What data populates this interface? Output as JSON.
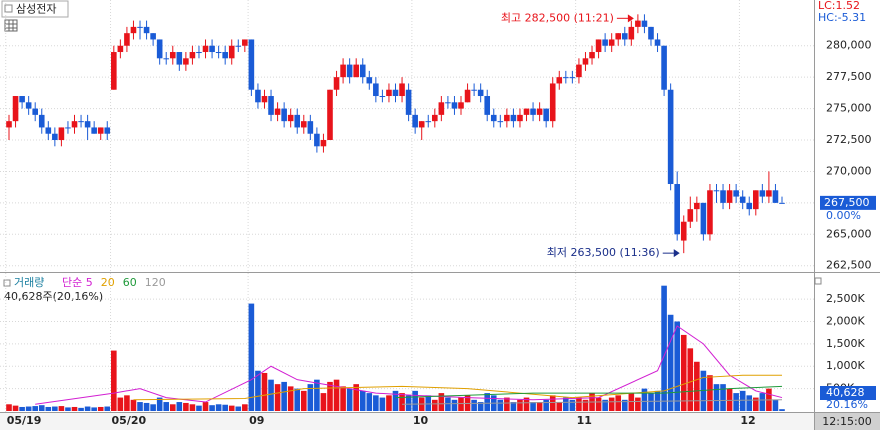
{
  "header": {
    "title": "삼성전자",
    "lc": "LC:1.52",
    "hc": "HC:-5.31",
    "time": "12:15:00"
  },
  "chart_data": [
    {
      "type": "candlestick",
      "up_color": "#e8141b",
      "down_color": "#1a5bd6",
      "open": [
        273500,
        274000,
        276000,
        275500,
        275000,
        274500,
        273500,
        273000,
        272500,
        273500,
        273500,
        274000,
        274000,
        273500,
        273000,
        273500,
        276500,
        279500,
        280000,
        281000,
        281500,
        281500,
        281000,
        280500,
        279000,
        279000,
        279500,
        278500,
        279000,
        279500,
        279500,
        280000,
        279500,
        279500,
        279000,
        280000,
        280000,
        280500,
        276500,
        275500,
        276000,
        274500,
        275000,
        274000,
        274500,
        273500,
        274000,
        273000,
        272000,
        272500,
        276500,
        277500,
        278500,
        277500,
        278500,
        277500,
        277000,
        276000,
        276000,
        276500,
        276000,
        276500,
        274500,
        273500,
        274000,
        274000,
        274500,
        275500,
        275500,
        275000,
        275500,
        276500,
        276500,
        276000,
        274500,
        274000,
        274000,
        274500,
        274000,
        274500,
        275000,
        274500,
        275000,
        274000,
        277000,
        277500,
        277500,
        277500,
        278500,
        279000,
        279500,
        280500,
        280000,
        280500,
        281000,
        280500,
        281500,
        282000,
        281500,
        280500,
        280000,
        276500,
        269000,
        264500,
        266000,
        267000,
        267500,
        265000,
        268500,
        268500,
        267500,
        268500,
        268000,
        267500,
        267000,
        268500,
        268000,
        268500,
        267500
      ],
      "high": [
        274500,
        276000,
        276000,
        276000,
        275500,
        275000,
        274000,
        273500,
        273500,
        274000,
        274500,
        274500,
        274500,
        274000,
        273500,
        274000,
        280000,
        280500,
        281500,
        282000,
        282000,
        282000,
        281000,
        280500,
        279500,
        280000,
        279500,
        279500,
        280000,
        280000,
        280500,
        280500,
        280000,
        280000,
        280500,
        280500,
        280500,
        280500,
        277000,
        276500,
        276500,
        275500,
        275500,
        275000,
        275000,
        274500,
        274500,
        273500,
        273000,
        276500,
        278000,
        279000,
        279000,
        279000,
        279000,
        278000,
        277500,
        276500,
        277000,
        277000,
        277500,
        277000,
        275000,
        274000,
        274500,
        275000,
        276000,
        276000,
        276000,
        276000,
        277000,
        277000,
        277000,
        276500,
        275000,
        274500,
        275000,
        275000,
        275000,
        275000,
        275500,
        275500,
        275000,
        277500,
        278000,
        278000,
        278000,
        279000,
        279500,
        280000,
        280500,
        281000,
        281000,
        281000,
        281500,
        282000,
        282500,
        282500,
        281500,
        281000,
        280000,
        277000,
        270000,
        266500,
        268000,
        268000,
        267500,
        269000,
        269000,
        269000,
        269000,
        269000,
        268500,
        268000,
        268500,
        269000,
        270000,
        269000,
        268000
      ],
      "low": [
        272500,
        273500,
        275000,
        274500,
        274000,
        273000,
        272500,
        272000,
        272000,
        273000,
        273000,
        273500,
        272500,
        273000,
        272500,
        272500,
        276500,
        279000,
        279500,
        280500,
        280500,
        280500,
        280000,
        278500,
        278500,
        278500,
        278000,
        278000,
        278500,
        279000,
        279000,
        279000,
        279000,
        278500,
        278500,
        279500,
        279500,
        276000,
        275000,
        275000,
        274000,
        274000,
        273500,
        273500,
        273000,
        273000,
        272500,
        271500,
        271500,
        272500,
        276000,
        277000,
        277000,
        277500,
        277000,
        276500,
        275500,
        275500,
        275500,
        275500,
        275500,
        274000,
        273000,
        272500,
        273500,
        273500,
        274000,
        275000,
        274500,
        274500,
        275500,
        276000,
        275500,
        274000,
        273500,
        273500,
        273500,
        273500,
        273500,
        274000,
        274000,
        274000,
        273500,
        273500,
        276500,
        277000,
        277000,
        277000,
        278000,
        278500,
        279000,
        279500,
        279500,
        280000,
        280000,
        280000,
        281000,
        281000,
        280000,
        279500,
        276000,
        268500,
        264500,
        263500,
        265500,
        266000,
        264500,
        264500,
        267500,
        267000,
        267000,
        267500,
        267000,
        266500,
        266500,
        267500,
        267500,
        267500,
        267500
      ],
      "close": [
        274000,
        276000,
        275500,
        275000,
        274500,
        273500,
        273000,
        272500,
        273500,
        273500,
        274000,
        274000,
        273500,
        273000,
        273500,
        273000,
        279500,
        280000,
        281000,
        281500,
        281500,
        281000,
        280500,
        279000,
        279000,
        279500,
        278500,
        279000,
        279500,
        279500,
        280000,
        279500,
        279500,
        279000,
        280000,
        280000,
        280500,
        276500,
        275500,
        276000,
        274500,
        275000,
        274000,
        274500,
        273500,
        274000,
        273000,
        272000,
        272500,
        276500,
        277500,
        278500,
        277500,
        278500,
        277500,
        277000,
        276000,
        276000,
        276500,
        276000,
        277000,
        274500,
        273500,
        274000,
        274000,
        274500,
        275500,
        275500,
        275000,
        275500,
        276500,
        276500,
        276000,
        274500,
        274000,
        274000,
        274500,
        274000,
        274500,
        275000,
        274500,
        275000,
        274000,
        277000,
        277500,
        277500,
        277500,
        278500,
        279000,
        279500,
        280500,
        280000,
        280500,
        281000,
        280500,
        281500,
        282000,
        281500,
        280500,
        280000,
        276500,
        269000,
        265000,
        266000,
        267000,
        267500,
        265000,
        268500,
        268500,
        267500,
        268500,
        268000,
        267500,
        267000,
        268500,
        268000,
        268500,
        267500,
        267500
      ],
      "ylim": [
        262000,
        283400
      ],
      "yticks": [
        {
          "value": 262500,
          "label": "262,500"
        },
        {
          "value": 265000,
          "label": "265,000"
        },
        {
          "value": 267500,
          "label": "267,500"
        },
        {
          "value": 270000,
          "label": "270,000"
        },
        {
          "value": 272500,
          "label": "272,500"
        },
        {
          "value": 275000,
          "label": "275,000"
        },
        {
          "value": 277500,
          "label": "277,500"
        },
        {
          "value": 280000,
          "label": "280,000"
        }
      ],
      "xticks": [
        {
          "value": 0,
          "label": "05/19"
        },
        {
          "value": 16,
          "label": "05/20"
        },
        {
          "value": 37,
          "label": "09"
        },
        {
          "value": 62,
          "label": "10"
        },
        {
          "value": 87,
          "label": "11"
        },
        {
          "value": 112,
          "label": "12"
        }
      ],
      "annotations": [
        {
          "text": "최고 282,500 (11:21)",
          "index": 96,
          "value": 282500,
          "color": "#e8141b"
        },
        {
          "text": "최저 263,500 (11:36)",
          "index": 103,
          "value": 263500,
          "color": "#1a2f8a"
        }
      ],
      "current": {
        "value": 267500,
        "label": "267,500",
        "change": "0.00%"
      }
    },
    {
      "type": "volume",
      "legend_title": "거래량",
      "summary": "40,628주(20,16%)",
      "values": [
        150000,
        120000,
        90000,
        100000,
        110000,
        130000,
        90000,
        100000,
        110000,
        80000,
        90000,
        70000,
        100000,
        80000,
        90000,
        100000,
        1350000,
        300000,
        350000,
        250000,
        200000,
        180000,
        150000,
        300000,
        200000,
        150000,
        200000,
        180000,
        150000,
        120000,
        200000,
        130000,
        150000,
        140000,
        120000,
        100000,
        150000,
        2400000,
        900000,
        850000,
        700000,
        600000,
        650000,
        550000,
        500000,
        450000,
        600000,
        700000,
        400000,
        650000,
        700000,
        550000,
        500000,
        600000,
        450000,
        400000,
        350000,
        300000,
        350000,
        450000,
        400000,
        350000,
        450000,
        300000,
        350000,
        250000,
        400000,
        300000,
        250000,
        300000,
        350000,
        250000,
        200000,
        400000,
        350000,
        250000,
        300000,
        200000,
        250000,
        300000,
        200000,
        200000,
        250000,
        350000,
        200000,
        300000,
        250000,
        300000,
        250000,
        400000,
        300000,
        250000,
        300000,
        350000,
        250000,
        400000,
        300000,
        500000,
        400000,
        450000,
        2800000,
        2150000,
        2000000,
        1700000,
        1400000,
        1100000,
        900000,
        800000,
        600000,
        600000,
        500000,
        400000,
        450000,
        350000,
        300000,
        400000,
        500000,
        250000,
        40628
      ],
      "ylim": [
        0,
        2860000
      ],
      "yticks": [
        {
          "value": 500000,
          "label": "500K"
        },
        {
          "value": 1000000,
          "label": "1,000K"
        },
        {
          "value": 1500000,
          "label": "1,500K"
        },
        {
          "value": 2000000,
          "label": "2,000K"
        },
        {
          "value": 2500000,
          "label": "2,500K"
        }
      ],
      "series": [
        {
          "name": "단순 5",
          "color": "#d21fd2",
          "x": [
            4,
            16,
            20,
            24,
            30,
            37,
            40,
            44,
            50,
            56,
            62,
            70,
            80,
            90,
            99,
            102,
            106,
            110,
            114,
            118
          ],
          "values": [
            150000,
            400000,
            500000,
            300000,
            200000,
            700000,
            1000000,
            700000,
            550000,
            400000,
            350000,
            300000,
            250000,
            300000,
            900000,
            1900000,
            1500000,
            800000,
            450000,
            300000
          ]
        },
        {
          "name": "20",
          "color": "#e0a000",
          "x": [
            19,
            36,
            45,
            60,
            70,
            86,
            100,
            106,
            112,
            118
          ],
          "values": [
            250000,
            280000,
            500000,
            550000,
            500000,
            300000,
            450000,
            750000,
            800000,
            800000
          ]
        },
        {
          "name": "60",
          "color": "#1f9a3a",
          "x": [
            59,
            80,
            100,
            110,
            118
          ],
          "values": [
            300000,
            400000,
            400000,
            500000,
            550000
          ]
        },
        {
          "name": "120",
          "color": "#9a9a9a",
          "x": [
            60,
            118
          ],
          "values": [
            150000,
            250000
          ]
        }
      ],
      "current": {
        "value": 40628,
        "label": "40,628",
        "change": "20.16%"
      }
    }
  ]
}
